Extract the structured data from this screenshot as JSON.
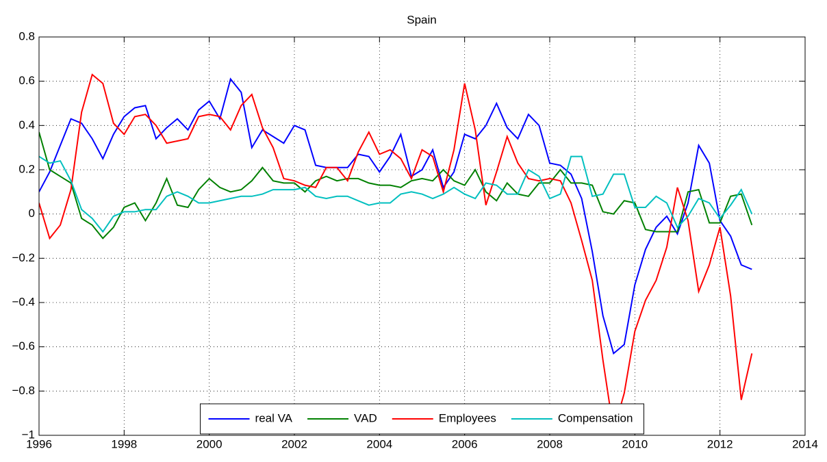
{
  "chart_data": {
    "type": "line",
    "title": "Spain",
    "x": [
      1996,
      1996.25,
      1996.5,
      1996.75,
      1997,
      1997.25,
      1997.5,
      1997.75,
      1998,
      1998.25,
      1998.5,
      1998.75,
      1999,
      1999.25,
      1999.5,
      1999.75,
      2000,
      2000.25,
      2000.5,
      2000.75,
      2001,
      2001.25,
      2001.5,
      2001.75,
      2002,
      2002.25,
      2002.5,
      2002.75,
      2003,
      2003.25,
      2003.5,
      2003.75,
      2004,
      2004.25,
      2004.5,
      2004.75,
      2005,
      2005.25,
      2005.5,
      2005.75,
      2006,
      2006.25,
      2006.5,
      2006.75,
      2007,
      2007.25,
      2007.5,
      2007.75,
      2008,
      2008.25,
      2008.5,
      2008.75,
      2009,
      2009.25,
      2009.5,
      2009.75,
      2010,
      2010.25,
      2010.5,
      2010.75,
      2011,
      2011.25,
      2011.5,
      2011.75,
      2012,
      2012.25,
      2012.5,
      2012.75
    ],
    "series": [
      {
        "name": "real VA",
        "color": "#0000ff",
        "values": [
          0.1,
          0.19,
          0.31,
          0.43,
          0.41,
          0.34,
          0.25,
          0.36,
          0.44,
          0.48,
          0.49,
          0.34,
          0.39,
          0.43,
          0.38,
          0.47,
          0.51,
          0.43,
          0.61,
          0.55,
          0.3,
          0.38,
          0.35,
          0.32,
          0.4,
          0.38,
          0.22,
          0.21,
          0.21,
          0.21,
          0.27,
          0.26,
          0.19,
          0.26,
          0.36,
          0.17,
          0.2,
          0.29,
          0.12,
          0.19,
          0.36,
          0.34,
          0.4,
          0.5,
          0.39,
          0.34,
          0.45,
          0.4,
          0.23,
          0.22,
          0.18,
          0.07,
          -0.17,
          -0.46,
          -0.63,
          -0.59,
          -0.32,
          -0.16,
          -0.06,
          -0.01,
          -0.09,
          0.05,
          0.31,
          0.23,
          -0.03,
          -0.1,
          -0.23,
          -0.25
        ]
      },
      {
        "name": "VAD",
        "color": "#008000",
        "values": [
          0.37,
          0.2,
          0.17,
          0.14,
          -0.02,
          -0.05,
          -0.11,
          -0.06,
          0.03,
          0.05,
          -0.03,
          0.05,
          0.16,
          0.04,
          0.03,
          0.11,
          0.16,
          0.12,
          0.1,
          0.11,
          0.15,
          0.21,
          0.15,
          0.14,
          0.14,
          0.1,
          0.15,
          0.17,
          0.15,
          0.16,
          0.16,
          0.14,
          0.13,
          0.13,
          0.12,
          0.15,
          0.16,
          0.15,
          0.2,
          0.15,
          0.13,
          0.2,
          0.1,
          0.06,
          0.14,
          0.09,
          0.08,
          0.14,
          0.14,
          0.2,
          0.14,
          0.14,
          0.13,
          0.01,
          0.0,
          0.06,
          0.05,
          -0.07,
          -0.08,
          -0.08,
          -0.08,
          0.1,
          0.11,
          -0.04,
          -0.04,
          0.08,
          0.09,
          -0.05
        ]
      },
      {
        "name": "Employees",
        "color": "#ff0000",
        "values": [
          0.05,
          -0.11,
          -0.05,
          0.11,
          0.46,
          0.63,
          0.59,
          0.41,
          0.36,
          0.44,
          0.45,
          0.4,
          0.32,
          0.33,
          0.34,
          0.44,
          0.45,
          0.44,
          0.38,
          0.49,
          0.54,
          0.39,
          0.3,
          0.16,
          0.15,
          0.13,
          0.12,
          0.21,
          0.21,
          0.15,
          0.28,
          0.37,
          0.27,
          0.29,
          0.25,
          0.16,
          0.29,
          0.26,
          0.1,
          0.29,
          0.59,
          0.38,
          0.04,
          0.19,
          0.35,
          0.23,
          0.16,
          0.15,
          0.16,
          0.15,
          0.05,
          -0.12,
          -0.3,
          -0.66,
          -0.98,
          -0.81,
          -0.53,
          -0.39,
          -0.3,
          -0.15,
          0.12,
          -0.03,
          -0.35,
          -0.23,
          -0.06,
          -0.37,
          -0.84,
          -0.63
        ]
      },
      {
        "name": "Compensation",
        "color": "#00bfbf",
        "values": [
          0.26,
          0.23,
          0.24,
          0.15,
          0.02,
          -0.02,
          -0.08,
          -0.01,
          0.01,
          0.01,
          0.02,
          0.02,
          0.08,
          0.1,
          0.08,
          0.05,
          0.05,
          0.06,
          0.07,
          0.08,
          0.08,
          0.09,
          0.11,
          0.11,
          0.11,
          0.12,
          0.08,
          0.07,
          0.08,
          0.08,
          0.06,
          0.04,
          0.05,
          0.05,
          0.09,
          0.1,
          0.09,
          0.07,
          0.09,
          0.12,
          0.09,
          0.07,
          0.14,
          0.13,
          0.09,
          0.09,
          0.2,
          0.17,
          0.07,
          0.09,
          0.26,
          0.26,
          0.08,
          0.09,
          0.18,
          0.18,
          0.03,
          0.03,
          0.08,
          0.05,
          -0.06,
          -0.01,
          0.07,
          0.05,
          -0.02,
          0.04,
          0.11,
          0.0
        ]
      }
    ],
    "xlim": [
      1996,
      2014
    ],
    "xticks": [
      1996,
      1998,
      2000,
      2002,
      2004,
      2006,
      2008,
      2010,
      2012,
      2014
    ],
    "ylim": [
      -1,
      0.8
    ],
    "yticks": [
      {
        "value": -1,
        "label": "−1"
      },
      {
        "value": -0.8,
        "label": "−0.8"
      },
      {
        "value": -0.6,
        "label": "−0.6"
      },
      {
        "value": -0.4,
        "label": "−0.4"
      },
      {
        "value": -0.2,
        "label": "−0.2"
      },
      0,
      0.2,
      0.4,
      0.6,
      0.8
    ],
    "grid": true,
    "legend": "lower center"
  }
}
